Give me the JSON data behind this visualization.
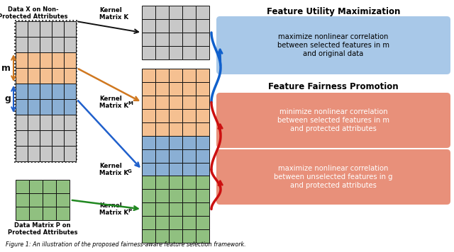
{
  "bg_color": "#ffffff",
  "title_caption": "Figure 1: An illustration of the proposed fairness-aware feature selection framework.",
  "data_x_label_line1": "Data X on Non-",
  "data_x_label_line2": "Protected Attributes",
  "data_p_label_line1": "Data Matrix P on",
  "data_p_label_line2": "Protected Attributes",
  "utility_title": "Feature Utility Maximization",
  "utility_text": "maximize nonlinear correlation\nbetween selected features in m\nand original data",
  "fairness_title": "Feature Fairness Promotion",
  "fairness_text1": "minimize nonlinear correlation\nbetween selected features in m\nand protected attributes",
  "fairness_text2": "maximize nonlinear correlation\nbetween unselected features in g\nand protected attributes",
  "color_orange_fill": "#F5C091",
  "color_blue_fill": "#8AAFD4",
  "color_green_fill": "#90C080",
  "color_gray_fill": "#C8C8C8",
  "color_utility_bg": "#A8C8E8",
  "color_fairness_bg": "#E8907A",
  "color_brace_blue": "#1060CC",
  "color_brace_red": "#CC1010",
  "color_arrow_orange": "#D07820",
  "color_arrow_blue": "#2060CC",
  "color_arrow_green": "#208820",
  "color_arrow_black": "#111111"
}
